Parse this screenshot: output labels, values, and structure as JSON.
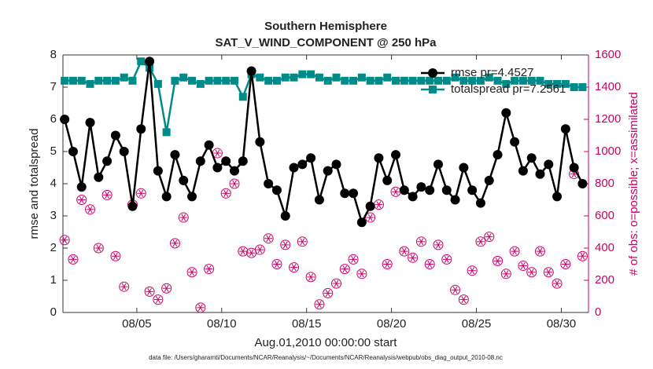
{
  "chart_data": {
    "type": "line",
    "title": "Southern Hemisphere",
    "subtitle": "SAT_V_WIND_COMPONENT @ 250 hPa",
    "xlabel": "Aug.01,2010 00:00:00 start",
    "ylabel": "rmse and totalspread",
    "y2label": "# of obs: o=possible; x=assimilated",
    "footnote": "data file: /Users/gharamti/Documents/NCAR/Reanalysis/~/Documents/NCAR/Reanalysis/webpub/obs_diag_output_2010-08.nc",
    "legend": "upper right",
    "xlim": [
      0.65,
      31.6
    ],
    "xticks": [
      {
        "value": 5,
        "label": "08/05"
      },
      {
        "value": 10,
        "label": "08/10"
      },
      {
        "value": 15,
        "label": "08/15"
      },
      {
        "value": 20,
        "label": "08/20"
      },
      {
        "value": 25,
        "label": "08/25"
      },
      {
        "value": 30,
        "label": "08/30"
      }
    ],
    "ylim": [
      0,
      8
    ],
    "yticks": [
      0,
      1,
      2,
      3,
      4,
      5,
      6,
      7,
      8
    ],
    "y2lim": [
      0,
      1600
    ],
    "y2ticks": [
      0,
      200,
      400,
      600,
      800,
      1000,
      1200,
      1400,
      1600
    ],
    "y2color": "#cc0066",
    "x": [
      0.75,
      1.25,
      1.75,
      2.25,
      2.75,
      3.25,
      3.75,
      4.25,
      4.75,
      5.25,
      5.75,
      6.25,
      6.75,
      7.25,
      7.75,
      8.25,
      8.75,
      9.25,
      9.75,
      10.25,
      10.75,
      11.25,
      11.75,
      12.25,
      12.75,
      13.25,
      13.75,
      14.25,
      14.75,
      15.25,
      15.75,
      16.25,
      16.75,
      17.25,
      17.75,
      18.25,
      18.75,
      19.25,
      19.75,
      20.25,
      20.75,
      21.25,
      21.75,
      22.25,
      22.75,
      23.25,
      23.75,
      24.25,
      24.75,
      25.25,
      25.75,
      26.25,
      26.75,
      27.25,
      27.75,
      28.25,
      28.75,
      29.25,
      29.75,
      30.25,
      30.75,
      31.25
    ],
    "series": [
      {
        "name": "rmse pr=4.4527",
        "color": "#000000",
        "marker": "circle",
        "values": [
          6.0,
          5.0,
          3.9,
          5.9,
          4.2,
          4.7,
          5.5,
          5.0,
          3.3,
          5.7,
          7.8,
          4.4,
          3.6,
          4.9,
          4.1,
          3.6,
          4.7,
          5.2,
          4.5,
          4.7,
          4.4,
          4.7,
          7.5,
          5.3,
          4.0,
          3.8,
          3.0,
          4.5,
          4.6,
          4.8,
          3.5,
          4.4,
          4.6,
          3.7,
          3.7,
          2.8,
          3.3,
          4.8,
          4.1,
          4.9,
          3.8,
          3.6,
          3.9,
          3.8,
          4.6,
          3.8,
          3.5,
          4.5,
          3.8,
          3.4,
          4.1,
          4.9,
          6.2,
          5.3,
          4.4,
          4.8,
          4.3,
          4.6,
          3.6,
          5.7,
          4.5,
          4.0
        ]
      },
      {
        "name": "totalspread pr=7.2561",
        "color": "#008b8b",
        "marker": "square",
        "values": [
          7.2,
          7.2,
          7.2,
          7.1,
          7.2,
          7.2,
          7.2,
          7.3,
          7.2,
          7.8,
          7.6,
          7.1,
          5.6,
          7.2,
          7.3,
          7.2,
          7.1,
          7.2,
          7.2,
          7.2,
          7.2,
          6.7,
          7.4,
          7.3,
          7.2,
          7.2,
          7.3,
          7.3,
          7.4,
          7.4,
          7.3,
          7.2,
          7.3,
          7.2,
          7.2,
          7.3,
          7.2,
          7.2,
          7.3,
          7.2,
          7.2,
          7.2,
          7.2,
          7.2,
          7.2,
          7.2,
          7.3,
          7.2,
          7.2,
          7.2,
          7.3,
          7.2,
          7.1,
          7.2,
          7.2,
          7.2,
          7.2,
          7.1,
          7.1,
          7.1,
          7.0,
          7.0
        ]
      },
      {
        "name": "# of obs",
        "color": "#cc0066",
        "marker": "obs",
        "axis": "y2",
        "values": [
          450,
          330,
          700,
          640,
          400,
          730,
          350,
          160,
          670,
          740,
          130,
          80,
          150,
          430,
          590,
          250,
          30,
          270,
          990,
          740,
          800,
          380,
          370,
          390,
          460,
          300,
          420,
          280,
          440,
          220,
          50,
          120,
          180,
          270,
          330,
          240,
          590,
          670,
          300,
          750,
          380,
          340,
          440,
          300,
          420,
          330,
          140,
          80,
          260,
          440,
          470,
          320,
          240,
          380,
          290,
          250,
          380,
          250,
          180,
          300,
          860,
          350
        ]
      }
    ]
  }
}
